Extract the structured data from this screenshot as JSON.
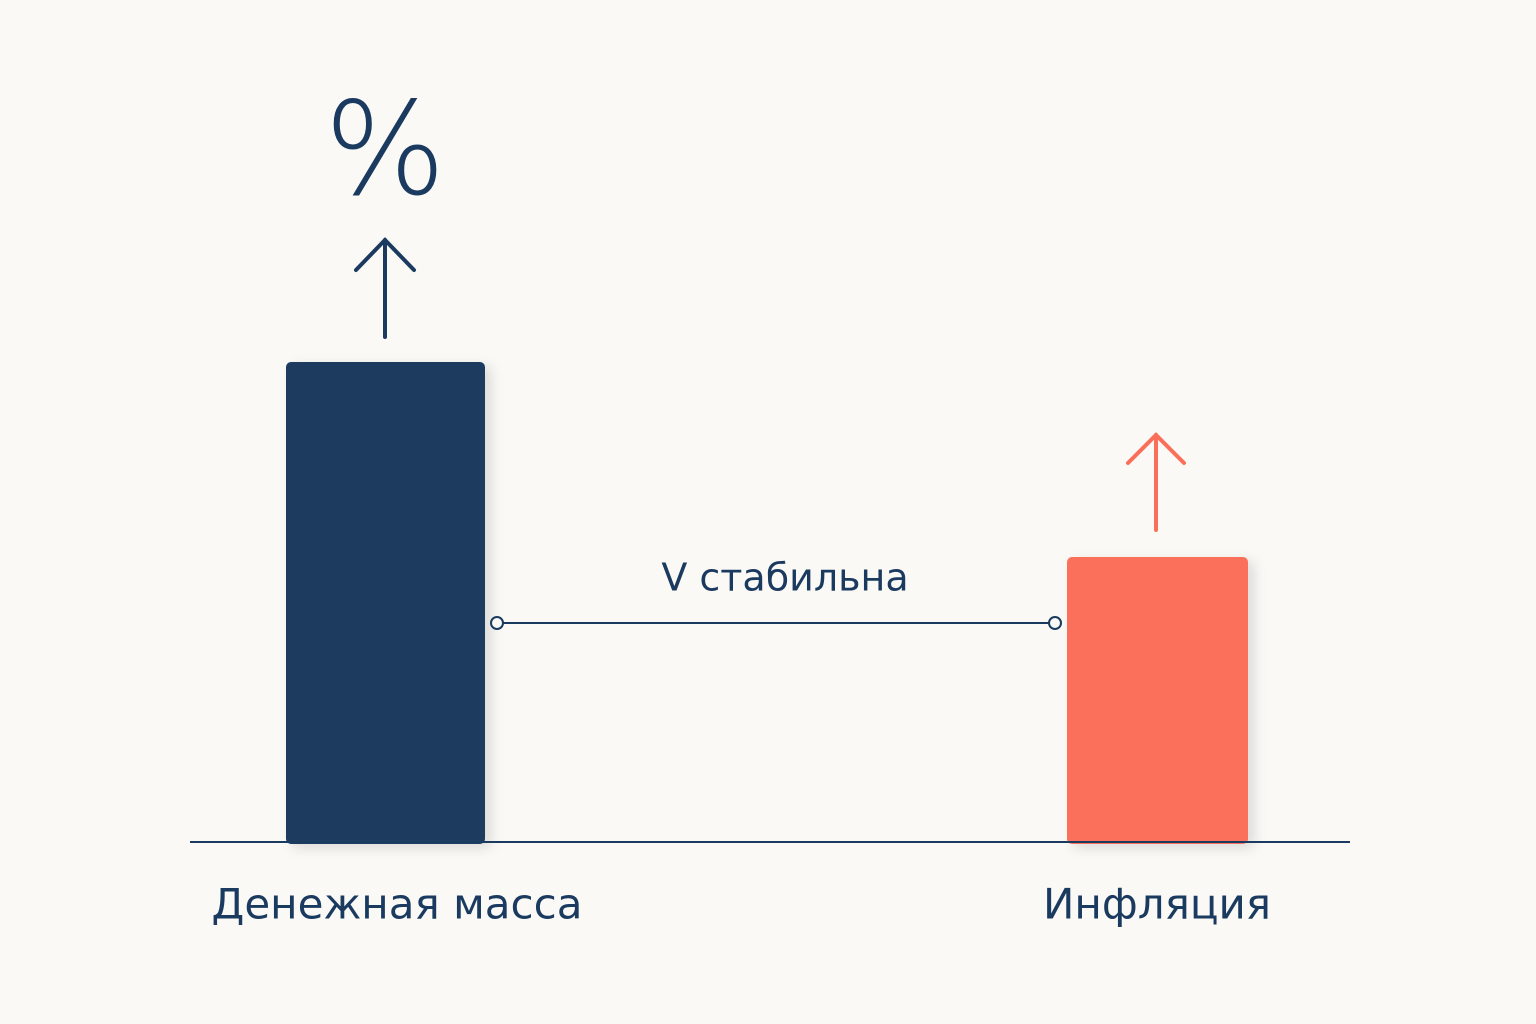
{
  "symbol": "%",
  "connector": {
    "label": "V стабильна"
  },
  "bars": [
    {
      "label": "Денежная масса"
    },
    {
      "label": "Инфляция"
    }
  ]
}
